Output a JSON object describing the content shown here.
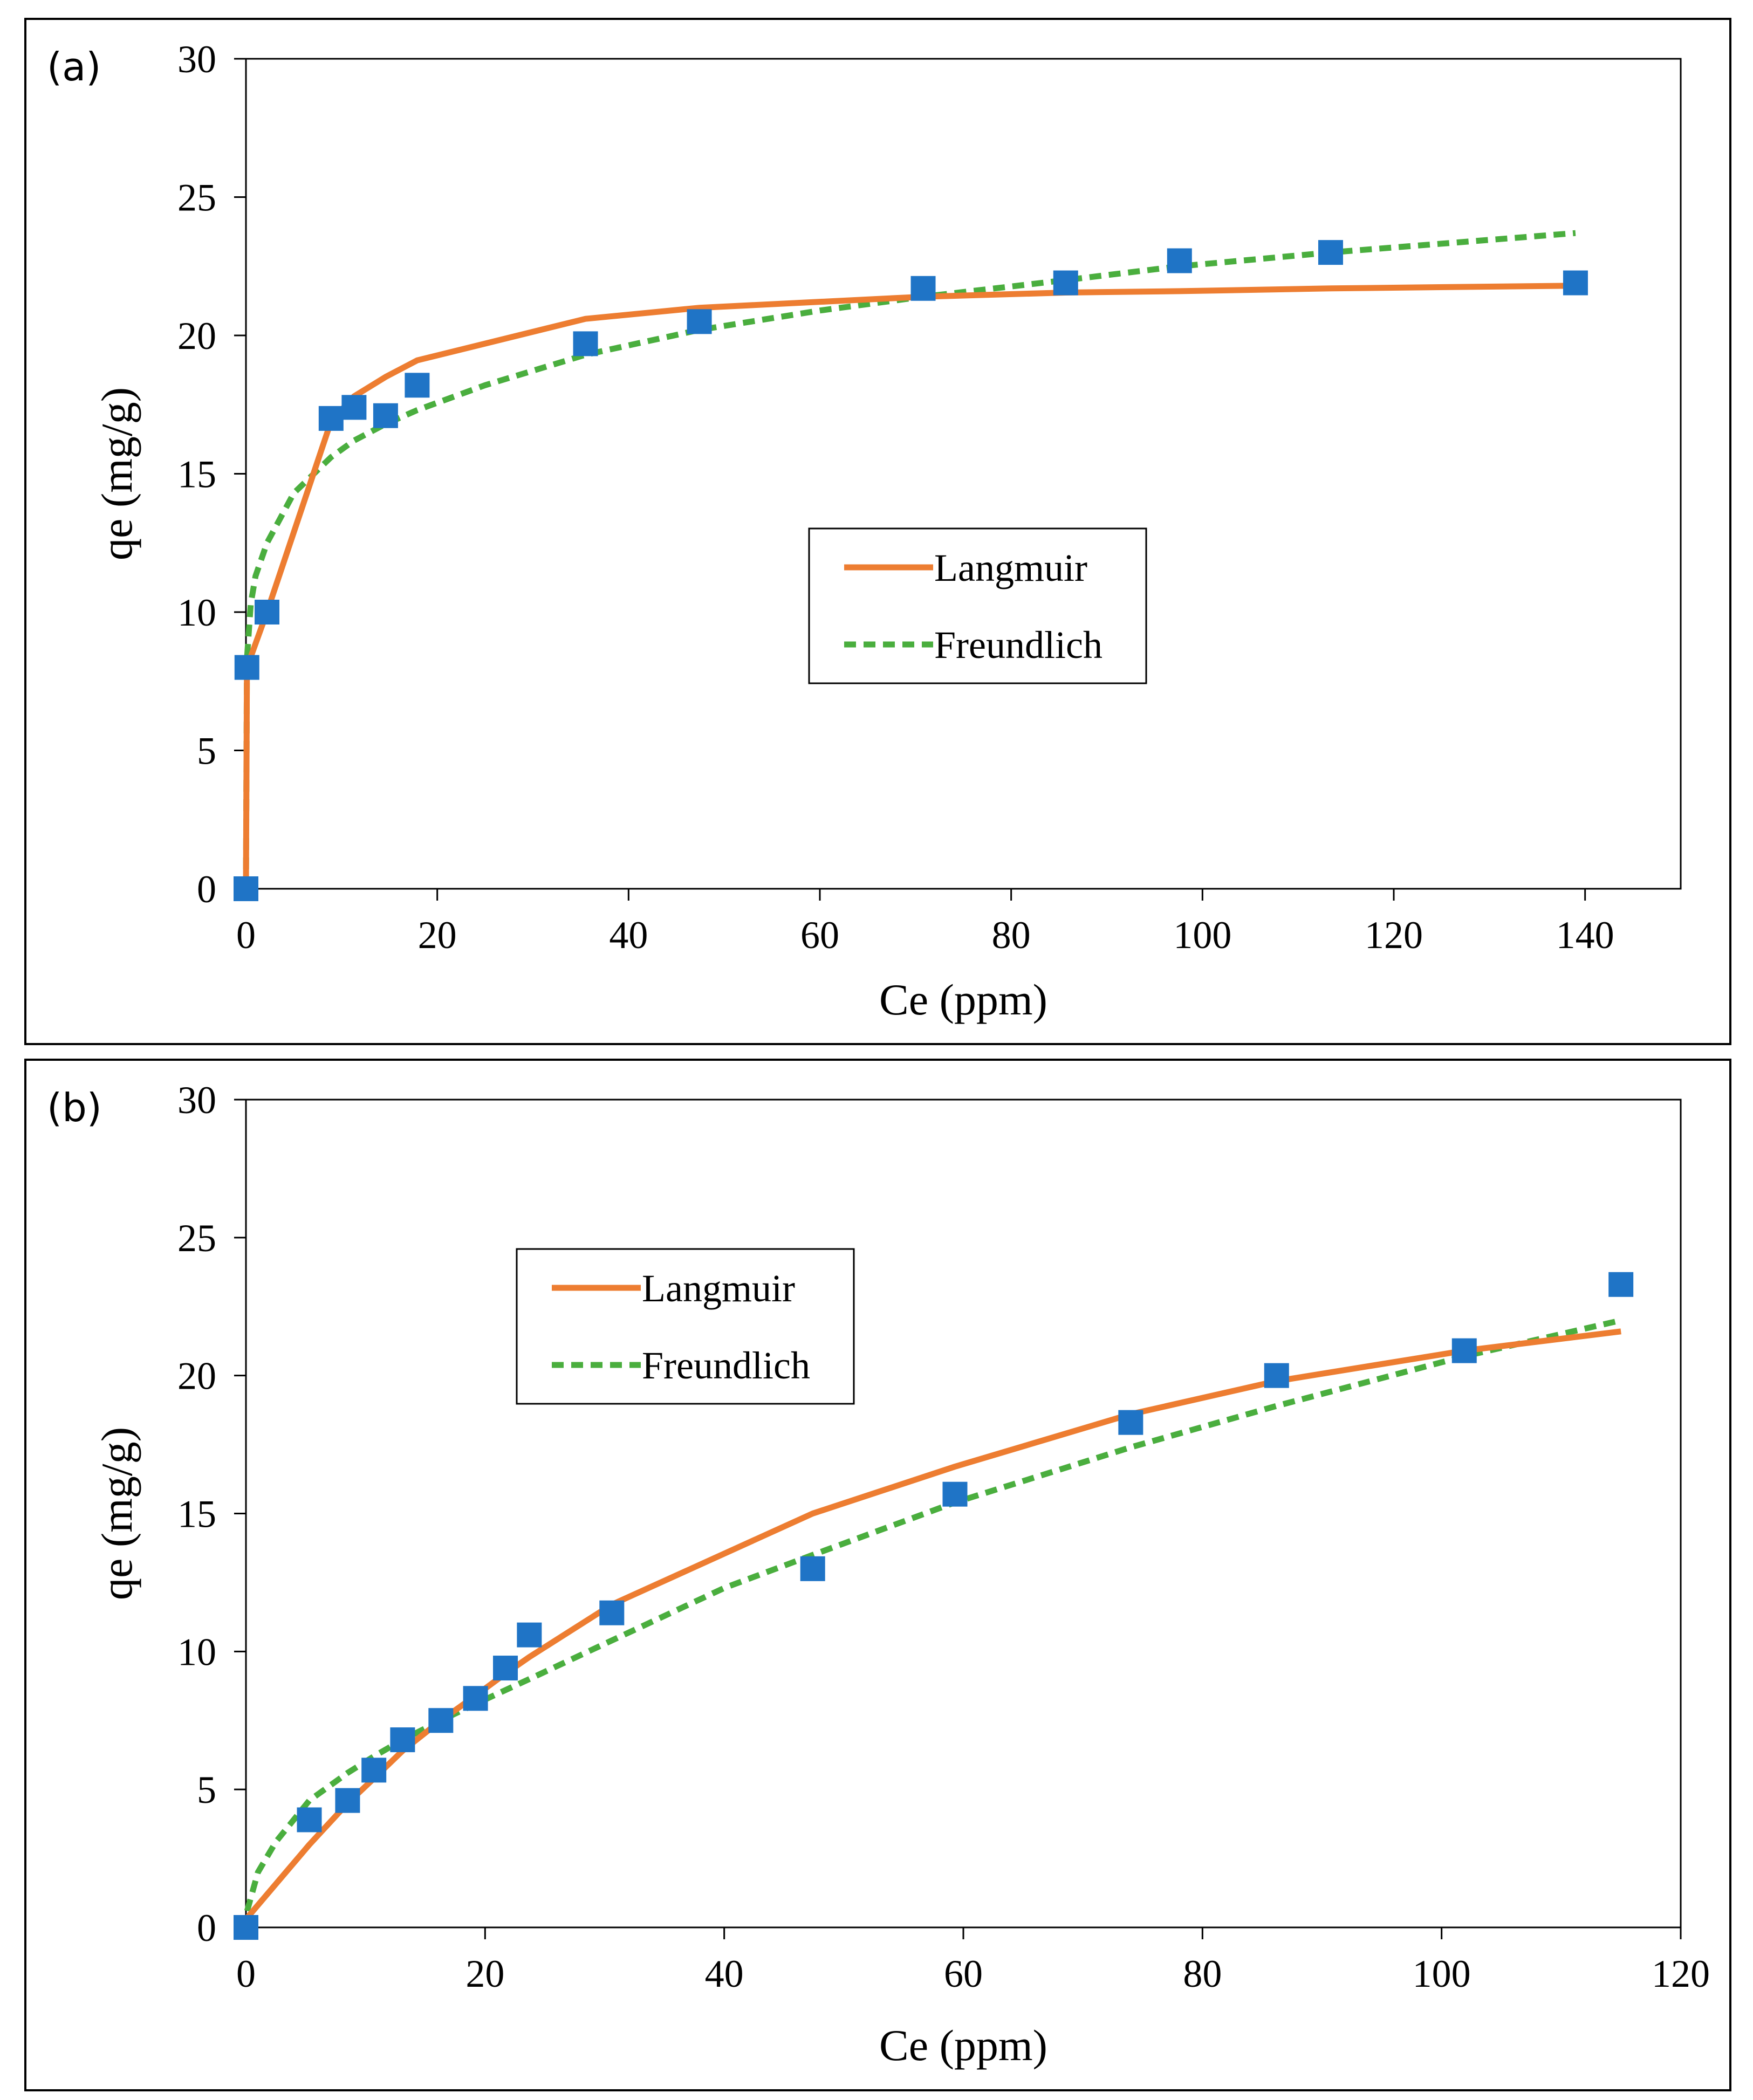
{
  "colors": {
    "langmuir": "#ED7D31",
    "freundlich": "#4AAE3E",
    "experimental": "#1F74C6",
    "axis": "#000000"
  },
  "chart_data": [
    {
      "panel_label": "(a)",
      "type": "scatter",
      "xlabel": "Ce (ppm)",
      "ylabel": "qe (mg/g)",
      "xlim": [
        0,
        150
      ],
      "ylim": [
        0,
        30
      ],
      "xticks": [
        0,
        20,
        40,
        60,
        80,
        100,
        120,
        140
      ],
      "yticks": [
        0,
        5,
        10,
        15,
        20,
        25,
        30
      ],
      "grid": false,
      "legend_placement": "center",
      "legend": [
        "Langmuir",
        "Freundlich"
      ],
      "series": [
        {
          "name": "Experimental",
          "style": "markers",
          "x": [
            0,
            0.1,
            2.2,
            8.9,
            11.3,
            14.6,
            17.9,
            35.5,
            47.4,
            70.8,
            85.7,
            97.6,
            113.4,
            139.0
          ],
          "y": [
            0,
            8.0,
            10.0,
            17.0,
            17.4,
            17.1,
            18.2,
            19.7,
            20.5,
            21.7,
            21.9,
            22.7,
            23.0,
            21.9
          ]
        },
        {
          "name": "Langmuir",
          "style": "solid",
          "x": [
            0,
            0.1,
            2.2,
            8.9,
            11.3,
            14.6,
            17.9,
            35.5,
            47.4,
            70.8,
            85.7,
            97.6,
            113.4,
            139.0
          ],
          "y": [
            0,
            8.0,
            10.0,
            16.9,
            17.8,
            18.5,
            19.1,
            20.6,
            21.0,
            21.4,
            21.55,
            21.6,
            21.7,
            21.8
          ]
        },
        {
          "name": "Freundlich",
          "style": "dashed",
          "x": [
            0,
            0.1,
            0.5,
            1,
            2.2,
            5,
            8.9,
            11.3,
            14.6,
            17.9,
            25,
            35.5,
            47.4,
            60,
            70.8,
            85.7,
            97.6,
            113.4,
            139.0
          ],
          "y": [
            0,
            8.3,
            10.3,
            11.3,
            12.5,
            14.3,
            15.6,
            16.2,
            16.8,
            17.3,
            18.2,
            19.3,
            20.2,
            20.9,
            21.4,
            22.0,
            22.5,
            23.0,
            23.7
          ]
        }
      ]
    },
    {
      "panel_label": "(b)",
      "type": "scatter",
      "xlabel": "Ce (ppm)",
      "ylabel": "qe (mg/g)",
      "xlim": [
        0,
        120
      ],
      "ylim": [
        0,
        30
      ],
      "xticks": [
        0,
        20,
        40,
        60,
        80,
        100,
        120
      ],
      "yticks": [
        0,
        5,
        10,
        15,
        20,
        25,
        30
      ],
      "grid": false,
      "legend_placement": "top-left",
      "legend": [
        "Langmuir",
        "Freundlich"
      ],
      "series": [
        {
          "name": "Experimental",
          "style": "markers",
          "x": [
            0,
            5.3,
            8.5,
            10.7,
            13.1,
            16.3,
            19.2,
            21.7,
            23.7,
            30.6,
            47.4,
            59.3,
            74.0,
            86.2,
            101.9,
            115.0
          ],
          "y": [
            0,
            3.9,
            4.6,
            5.7,
            6.8,
            7.5,
            8.3,
            9.4,
            10.6,
            11.4,
            13.0,
            15.7,
            18.3,
            20.0,
            20.9,
            23.3
          ]
        },
        {
          "name": "Langmuir",
          "style": "solid",
          "x": [
            0,
            5.3,
            8.5,
            10.7,
            13.1,
            16.3,
            19.2,
            21.7,
            23.7,
            30.6,
            47.4,
            59.3,
            74.0,
            86.2,
            101.9,
            115.0
          ],
          "y": [
            0.3,
            3.0,
            4.5,
            5.4,
            6.4,
            7.5,
            8.4,
            9.2,
            9.8,
            11.7,
            15.0,
            16.7,
            18.6,
            19.8,
            20.9,
            21.6
          ]
        },
        {
          "name": "Freundlich",
          "style": "dashed",
          "x": [
            0.1,
            1,
            2.5,
            5.3,
            8.5,
            10.7,
            13.1,
            16.3,
            19.2,
            23.7,
            30.6,
            40,
            47.4,
            59.3,
            74.0,
            86.2,
            101.9,
            115.0
          ],
          "y": [
            0.6,
            2.0,
            3.1,
            4.6,
            5.6,
            6.2,
            6.8,
            7.5,
            8.1,
            9.0,
            10.4,
            12.3,
            13.5,
            15.4,
            17.4,
            18.9,
            20.7,
            22.0
          ]
        }
      ]
    }
  ]
}
